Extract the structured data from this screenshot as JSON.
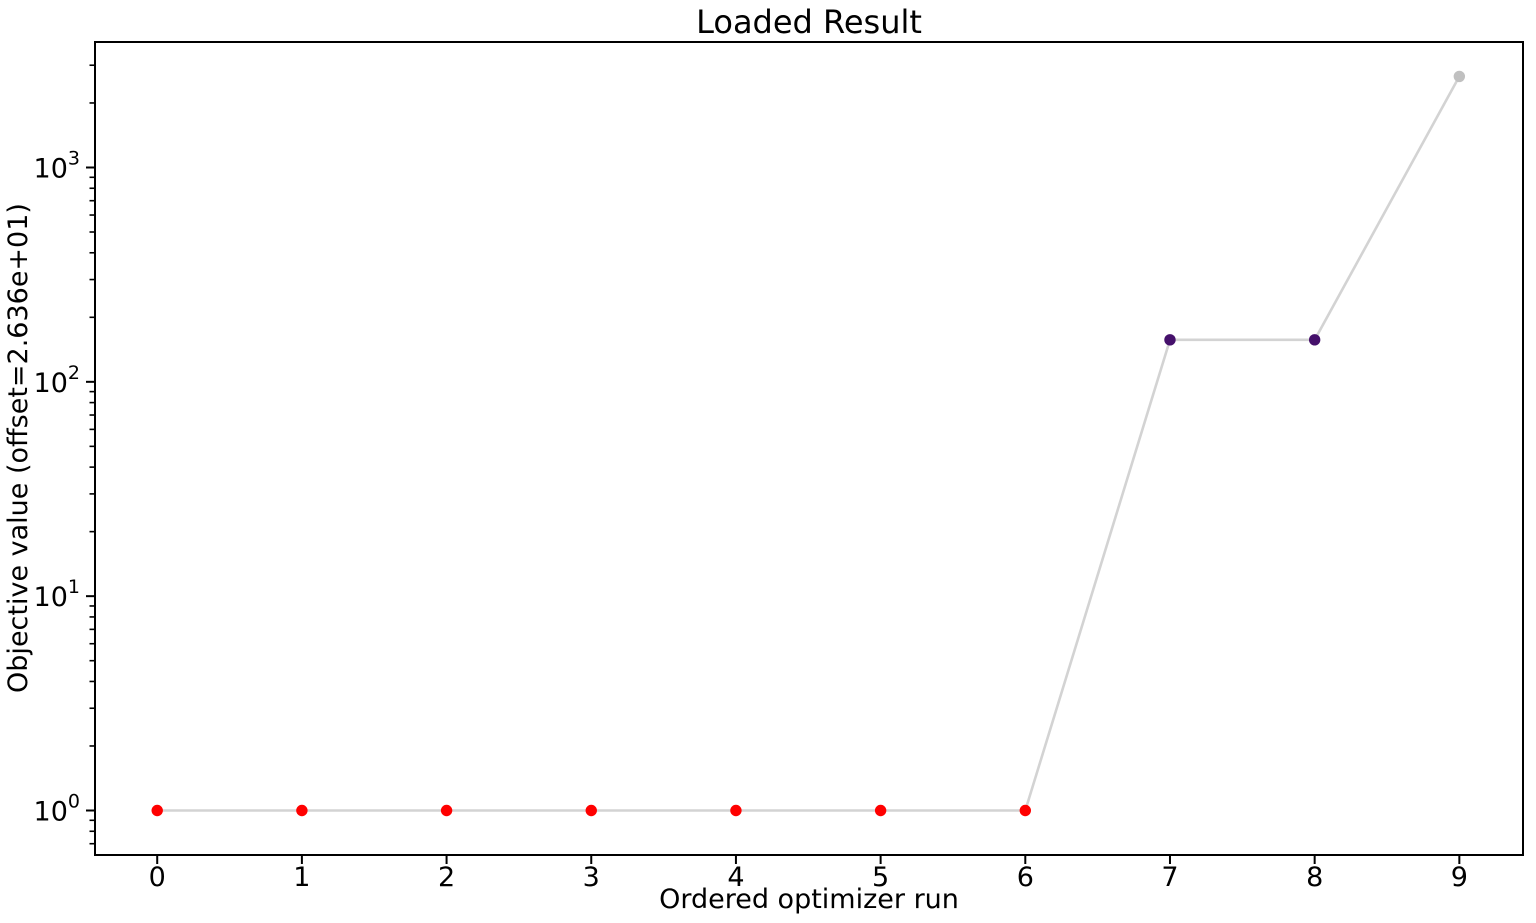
{
  "figure": {
    "background": "#ffffff"
  },
  "chart_data": {
    "type": "line",
    "title": "Loaded Result",
    "xlabel": "Ordered optimizer run",
    "ylabel": "Objective value (offset=2.636e+01)",
    "offset_text": "2.636e+01",
    "xscale": "linear",
    "yscale": "log",
    "grid": false,
    "legend": null,
    "x": [
      0,
      1,
      2,
      3,
      4,
      5,
      6,
      7,
      8,
      9
    ],
    "y": [
      1.0,
      1.0,
      1.0,
      1.0,
      1.0,
      1.0,
      1.0,
      157.0,
      157.0,
      2660.0
    ],
    "point_colors": [
      "#ff0000",
      "#ff0000",
      "#ff0000",
      "#ff0000",
      "#ff0000",
      "#ff0000",
      "#ff0000",
      "#45106b",
      "#45106b",
      "#c0c0c0"
    ],
    "line_color": "#d3d3d3",
    "axis_color": "#000000",
    "xlim": [
      -0.43,
      9.44
    ],
    "ylim": [
      0.62,
      3850
    ],
    "xticks": {
      "values": [
        0,
        1,
        2,
        3,
        4,
        5,
        6,
        7,
        8,
        9
      ],
      "labels": [
        "0",
        "1",
        "2",
        "3",
        "4",
        "5",
        "6",
        "7",
        "8",
        "9"
      ]
    },
    "yticks": [
      {
        "value": 1,
        "mantissa": "10",
        "exponent": "0"
      },
      {
        "value": 10,
        "mantissa": "10",
        "exponent": "1"
      },
      {
        "value": 100,
        "mantissa": "10",
        "exponent": "2"
      },
      {
        "value": 1000,
        "mantissa": "10",
        "exponent": "3"
      }
    ]
  }
}
